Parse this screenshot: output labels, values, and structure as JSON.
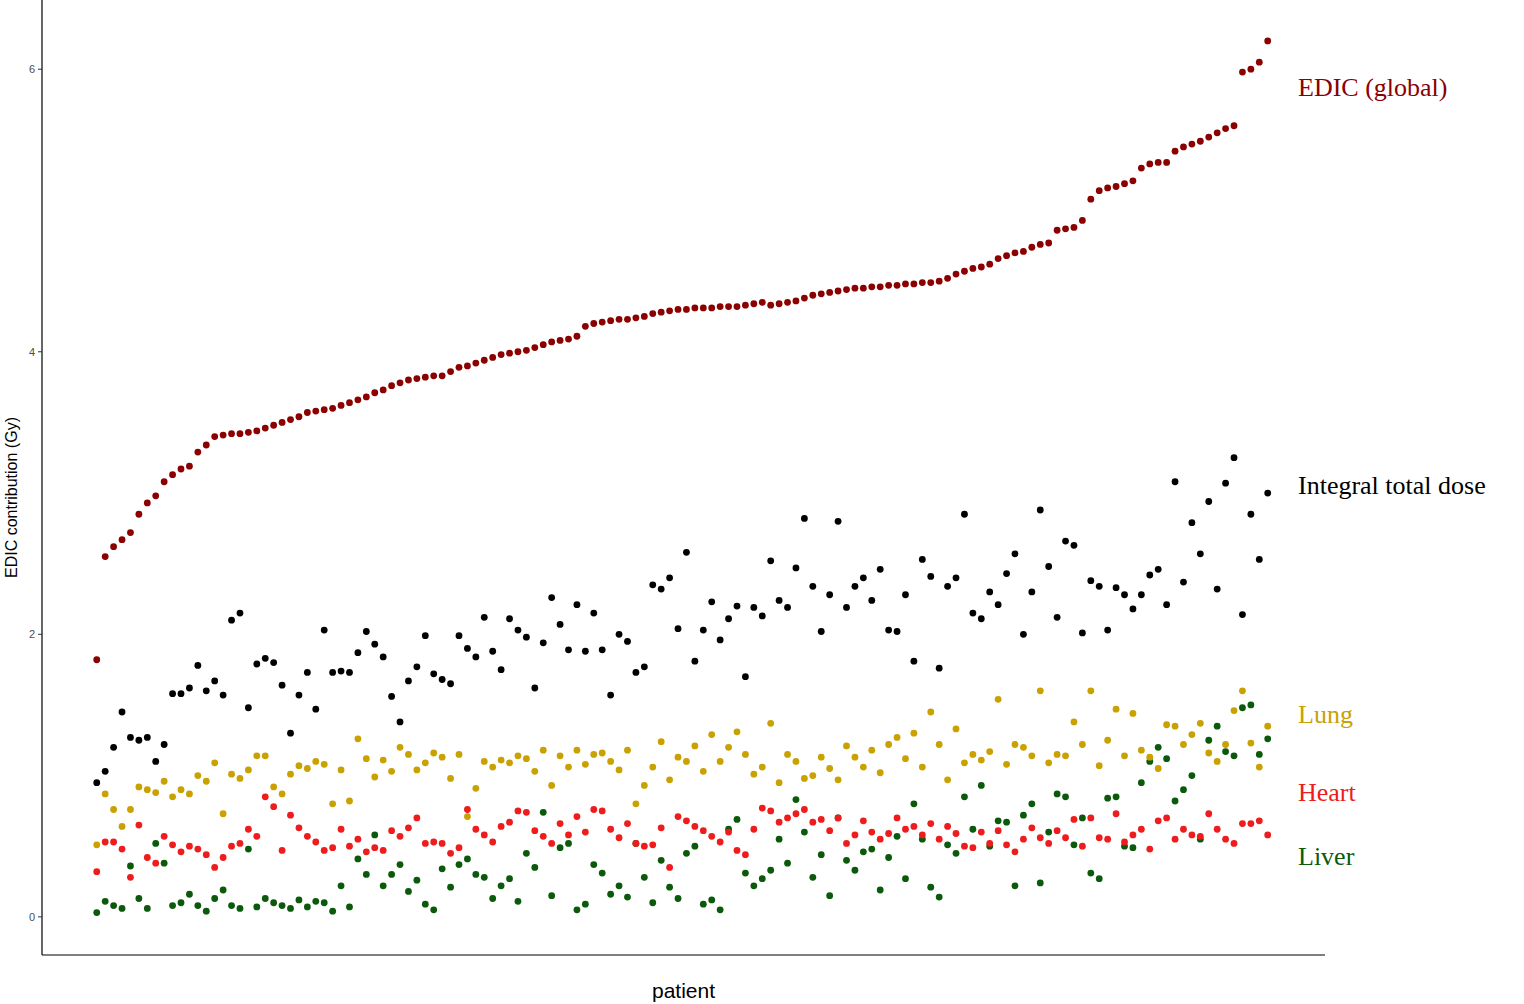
{
  "chart_data": {
    "type": "scatter",
    "x_label": "patient",
    "y_label": "EDIC contribution (Gy)",
    "tick_labels": "y",
    "grid": false,
    "marker": "circle",
    "xlim": [
      -5.5,
      146.8
    ],
    "ylim": [
      -0.27,
      6.49
    ],
    "yticks": [
      0,
      2,
      4,
      6
    ],
    "x": [
      1,
      2,
      3,
      4,
      5,
      6,
      7,
      8,
      9,
      10,
      11,
      12,
      13,
      14,
      15,
      16,
      17,
      18,
      19,
      20,
      21,
      22,
      23,
      24,
      25,
      26,
      27,
      28,
      29,
      30,
      31,
      32,
      33,
      34,
      35,
      36,
      37,
      38,
      39,
      40,
      41,
      42,
      43,
      44,
      45,
      46,
      47,
      48,
      49,
      50,
      51,
      52,
      53,
      54,
      55,
      56,
      57,
      58,
      59,
      60,
      61,
      62,
      63,
      64,
      65,
      66,
      67,
      68,
      69,
      70,
      71,
      72,
      73,
      74,
      75,
      76,
      77,
      78,
      79,
      80,
      81,
      82,
      83,
      84,
      85,
      86,
      87,
      88,
      89,
      90,
      91,
      92,
      93,
      94,
      95,
      96,
      97,
      98,
      99,
      100,
      101,
      102,
      103,
      104,
      105,
      106,
      107,
      108,
      109,
      110,
      111,
      112,
      113,
      114,
      115,
      116,
      117,
      118,
      119,
      120,
      121,
      122,
      123,
      124,
      125,
      126,
      127,
      128,
      129,
      130,
      131,
      132,
      133,
      134,
      135,
      136,
      137,
      138,
      139,
      140
    ],
    "series": [
      {
        "name": "EDIC (global)",
        "color": "#8b0000",
        "values": [
          1.82,
          2.55,
          2.62,
          2.67,
          2.72,
          2.85,
          2.93,
          2.98,
          3.08,
          3.13,
          3.17,
          3.19,
          3.29,
          3.34,
          3.4,
          3.41,
          3.42,
          3.42,
          3.43,
          3.44,
          3.46,
          3.48,
          3.5,
          3.52,
          3.54,
          3.57,
          3.58,
          3.59,
          3.6,
          3.62,
          3.64,
          3.66,
          3.68,
          3.71,
          3.73,
          3.76,
          3.78,
          3.8,
          3.81,
          3.82,
          3.83,
          3.83,
          3.86,
          3.89,
          3.9,
          3.92,
          3.94,
          3.96,
          3.98,
          3.99,
          4.0,
          4.01,
          4.03,
          4.05,
          4.07,
          4.08,
          4.09,
          4.11,
          4.18,
          4.2,
          4.21,
          4.22,
          4.23,
          4.23,
          4.24,
          4.25,
          4.27,
          4.28,
          4.29,
          4.3,
          4.3,
          4.31,
          4.31,
          4.31,
          4.32,
          4.32,
          4.32,
          4.33,
          4.34,
          4.35,
          4.33,
          4.34,
          4.35,
          4.36,
          4.38,
          4.4,
          4.41,
          4.42,
          4.43,
          4.44,
          4.45,
          4.45,
          4.46,
          4.46,
          4.47,
          4.47,
          4.48,
          4.48,
          4.49,
          4.49,
          4.5,
          4.52,
          4.55,
          4.57,
          4.59,
          4.6,
          4.62,
          4.66,
          4.68,
          4.7,
          4.71,
          4.74,
          4.76,
          4.77,
          4.86,
          4.87,
          4.88,
          4.93,
          5.08,
          5.14,
          5.16,
          5.17,
          5.19,
          5.21,
          5.3,
          5.33,
          5.34,
          5.34,
          5.42,
          5.45,
          5.47,
          5.49,
          5.52,
          5.55,
          5.58,
          5.6,
          5.98,
          6.0,
          6.05,
          6.2
        ]
      },
      {
        "name": "Integral total dose",
        "color": "#000000",
        "values": [
          0.95,
          1.03,
          1.2,
          1.45,
          1.27,
          1.25,
          1.27,
          1.1,
          1.22,
          1.58,
          1.58,
          1.62,
          1.78,
          1.6,
          1.67,
          1.57,
          2.1,
          2.15,
          1.48,
          1.79,
          1.83,
          1.8,
          1.64,
          1.3,
          1.57,
          1.73,
          1.47,
          2.03,
          1.73,
          1.74,
          1.73,
          1.87,
          2.02,
          1.93,
          1.84,
          1.56,
          1.38,
          1.67,
          1.77,
          1.99,
          1.72,
          1.68,
          1.65,
          1.99,
          1.9,
          1.84,
          2.12,
          1.88,
          1.75,
          2.11,
          2.03,
          1.98,
          1.62,
          1.94,
          2.26,
          2.07,
          1.89,
          2.21,
          1.88,
          2.15,
          1.89,
          1.57,
          2.0,
          1.95,
          1.73,
          1.77,
          2.35,
          2.32,
          2.4,
          2.04,
          2.58,
          1.81,
          2.03,
          2.23,
          1.96,
          2.11,
          2.2,
          1.7,
          2.19,
          2.13,
          2.52,
          2.24,
          2.19,
          2.47,
          2.82,
          2.34,
          2.02,
          2.28,
          2.8,
          2.19,
          2.34,
          2.4,
          2.24,
          2.46,
          2.03,
          2.02,
          2.28,
          1.81,
          2.53,
          2.41,
          1.76,
          2.34,
          2.4,
          2.85,
          2.15,
          2.11,
          2.3,
          2.21,
          2.43,
          2.57,
          2.0,
          2.3,
          2.88,
          2.48,
          2.12,
          2.66,
          2.63,
          2.01,
          2.38,
          2.34,
          2.03,
          2.33,
          2.28,
          2.18,
          2.28,
          2.42,
          2.46,
          2.21,
          3.08,
          2.37,
          2.79,
          2.57,
          2.94,
          2.32,
          3.07,
          3.25,
          2.14,
          2.85,
          2.53,
          3.0
        ]
      },
      {
        "name": "Lung",
        "color": "#c9a100",
        "values": [
          0.51,
          0.87,
          0.76,
          0.64,
          0.76,
          0.92,
          0.9,
          0.88,
          0.96,
          0.85,
          0.9,
          0.87,
          1.0,
          0.96,
          1.09,
          0.73,
          1.01,
          0.98,
          1.04,
          1.14,
          1.14,
          0.92,
          0.87,
          1.01,
          1.07,
          1.05,
          1.1,
          1.08,
          0.8,
          1.04,
          0.82,
          1.26,
          1.12,
          0.99,
          1.11,
          1.03,
          1.2,
          1.15,
          1.04,
          1.09,
          1.16,
          1.13,
          0.98,
          1.15,
          0.71,
          0.91,
          1.1,
          1.06,
          1.11,
          1.09,
          1.14,
          1.12,
          1.03,
          1.18,
          0.93,
          1.14,
          1.06,
          1.18,
          1.08,
          1.15,
          1.16,
          1.1,
          1.04,
          1.18,
          0.8,
          0.93,
          1.06,
          1.24,
          0.97,
          1.13,
          1.1,
          1.21,
          1.03,
          1.29,
          1.1,
          1.2,
          1.31,
          1.15,
          1.01,
          1.06,
          1.37,
          0.95,
          1.15,
          1.1,
          0.98,
          1.0,
          1.13,
          1.05,
          0.97,
          1.21,
          1.13,
          1.06,
          1.18,
          1.02,
          1.22,
          1.27,
          1.12,
          1.3,
          1.06,
          1.45,
          1.22,
          0.97,
          1.33,
          1.09,
          1.15,
          1.11,
          1.17,
          1.54,
          1.08,
          1.22,
          1.2,
          1.14,
          1.6,
          1.09,
          1.15,
          1.14,
          1.38,
          1.22,
          1.6,
          1.07,
          1.25,
          1.47,
          1.14,
          1.44,
          1.18,
          1.13,
          1.05,
          1.36,
          1.35,
          1.22,
          1.29,
          1.37,
          1.16,
          1.1,
          1.22,
          1.46,
          1.6,
          1.23,
          1.06,
          1.35
        ]
      },
      {
        "name": "Heart",
        "color": "#ee1c1c",
        "values": [
          0.32,
          0.53,
          0.53,
          0.48,
          0.28,
          0.65,
          0.42,
          0.38,
          0.57,
          0.51,
          0.46,
          0.5,
          0.48,
          0.44,
          0.35,
          0.42,
          0.5,
          0.52,
          0.62,
          0.57,
          0.85,
          0.78,
          0.47,
          0.72,
          0.63,
          0.57,
          0.53,
          0.47,
          0.49,
          0.62,
          0.5,
          0.55,
          0.46,
          0.49,
          0.47,
          0.61,
          0.57,
          0.63,
          0.7,
          0.52,
          0.53,
          0.52,
          0.45,
          0.49,
          0.76,
          0.62,
          0.58,
          0.53,
          0.64,
          0.67,
          0.75,
          0.74,
          0.61,
          0.57,
          0.52,
          0.66,
          0.58,
          0.71,
          0.6,
          0.76,
          0.75,
          0.62,
          0.56,
          0.66,
          0.52,
          0.5,
          0.51,
          0.63,
          0.35,
          0.71,
          0.68,
          0.64,
          0.61,
          0.57,
          0.53,
          0.6,
          0.47,
          0.44,
          0.62,
          0.77,
          0.75,
          0.67,
          0.7,
          0.73,
          0.76,
          0.67,
          0.69,
          0.61,
          0.7,
          0.52,
          0.58,
          0.68,
          0.6,
          0.55,
          0.59,
          0.7,
          0.62,
          0.64,
          0.58,
          0.66,
          0.55,
          0.64,
          0.59,
          0.5,
          0.49,
          0.6,
          0.52,
          0.61,
          0.51,
          0.46,
          0.55,
          0.63,
          0.56,
          0.52,
          0.61,
          0.56,
          0.69,
          0.5,
          0.7,
          0.56,
          0.55,
          0.73,
          0.53,
          0.58,
          0.62,
          0.48,
          0.68,
          0.7,
          0.55,
          0.62,
          0.58,
          0.57,
          0.73,
          0.62,
          0.55,
          0.52,
          0.66,
          0.66,
          0.68,
          0.58
        ]
      },
      {
        "name": "Liver",
        "color": "#0b5a0b",
        "values": [
          0.03,
          0.11,
          0.08,
          0.06,
          0.36,
          0.13,
          0.06,
          0.52,
          0.38,
          0.08,
          0.1,
          0.16,
          0.08,
          0.04,
          0.13,
          0.19,
          0.08,
          0.06,
          0.48,
          0.07,
          0.13,
          0.1,
          0.08,
          0.06,
          0.12,
          0.07,
          0.11,
          0.1,
          0.04,
          0.22,
          0.07,
          0.41,
          0.3,
          0.58,
          0.22,
          0.3,
          0.37,
          0.18,
          0.26,
          0.09,
          0.05,
          0.34,
          0.21,
          0.37,
          0.41,
          0.3,
          0.28,
          0.13,
          0.22,
          0.27,
          0.11,
          0.45,
          0.35,
          0.74,
          0.15,
          0.49,
          0.52,
          0.05,
          0.09,
          0.37,
          0.31,
          0.16,
          0.22,
          0.14,
          0.52,
          0.28,
          0.1,
          0.4,
          0.21,
          0.13,
          0.45,
          0.5,
          0.09,
          0.12,
          0.05,
          0.62,
          0.69,
          0.31,
          0.22,
          0.27,
          0.33,
          0.55,
          0.38,
          0.83,
          0.6,
          0.28,
          0.44,
          0.15,
          0.7,
          0.4,
          0.33,
          0.46,
          0.48,
          0.19,
          0.42,
          0.57,
          0.27,
          0.8,
          0.55,
          0.21,
          0.14,
          0.51,
          0.45,
          0.85,
          0.62,
          0.93,
          0.5,
          0.68,
          0.67,
          0.22,
          0.72,
          0.8,
          0.24,
          0.6,
          0.87,
          0.85,
          0.51,
          0.7,
          0.31,
          0.27,
          0.84,
          0.85,
          0.5,
          0.49,
          0.95,
          1.1,
          1.2,
          1.12,
          0.82,
          0.9,
          1.0,
          0.55,
          1.25,
          1.35,
          1.17,
          1.14,
          1.48,
          1.5,
          1.15,
          1.26
        ]
      }
    ]
  }
}
